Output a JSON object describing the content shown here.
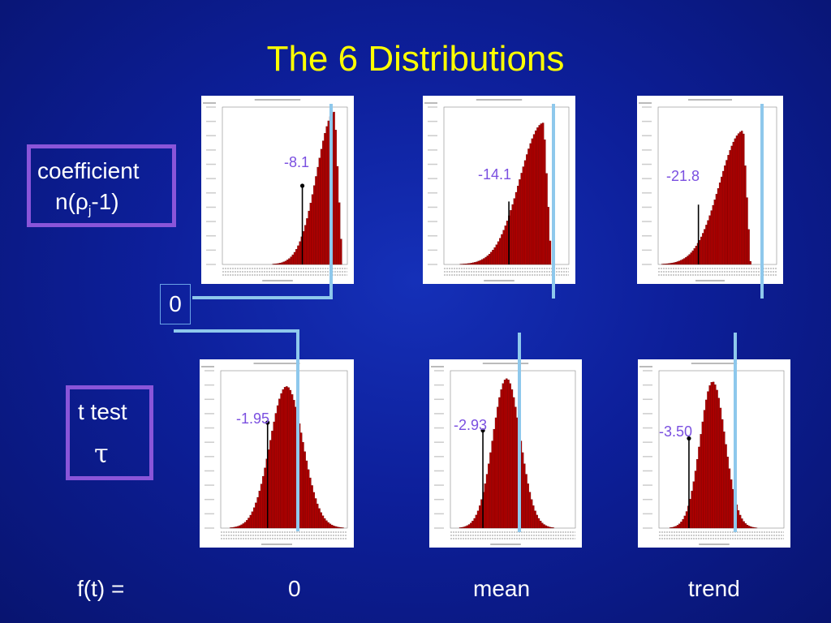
{
  "title": "The 6 Distributions",
  "labels": {
    "coefficient_line1": "coefficient",
    "coefficient_n": "n(",
    "coefficient_rho": "ρ",
    "coefficient_sub": "j",
    "coefficient_tail": "-1)",
    "ttest_line1": "t test",
    "ttest_symbol": "τ",
    "zero": "0"
  },
  "footer": {
    "prefix": "f(t) =",
    "col1": "0",
    "col2": "mean",
    "col3": "trend"
  },
  "colors": {
    "bar": "#b00000",
    "critical_line": "#8ec8ec",
    "value_text": "#7a4fe0",
    "title": "#ffff00"
  },
  "distributions": [
    {
      "row": "coefficient",
      "case": "0",
      "value_label": "-8.1",
      "shape": "left-skewed"
    },
    {
      "row": "coefficient",
      "case": "mean",
      "value_label": "-14.1",
      "shape": "left-skewed"
    },
    {
      "row": "coefficient",
      "case": "trend",
      "value_label": "-21.8",
      "shape": "left-skewed"
    },
    {
      "row": "t test",
      "case": "0",
      "value_label": "-1.95",
      "shape": "near-normal"
    },
    {
      "row": "t test",
      "case": "mean",
      "value_label": "-2.93",
      "shape": "near-normal"
    },
    {
      "row": "t test",
      "case": "trend",
      "value_label": "-3.50",
      "shape": "near-normal"
    }
  ]
}
